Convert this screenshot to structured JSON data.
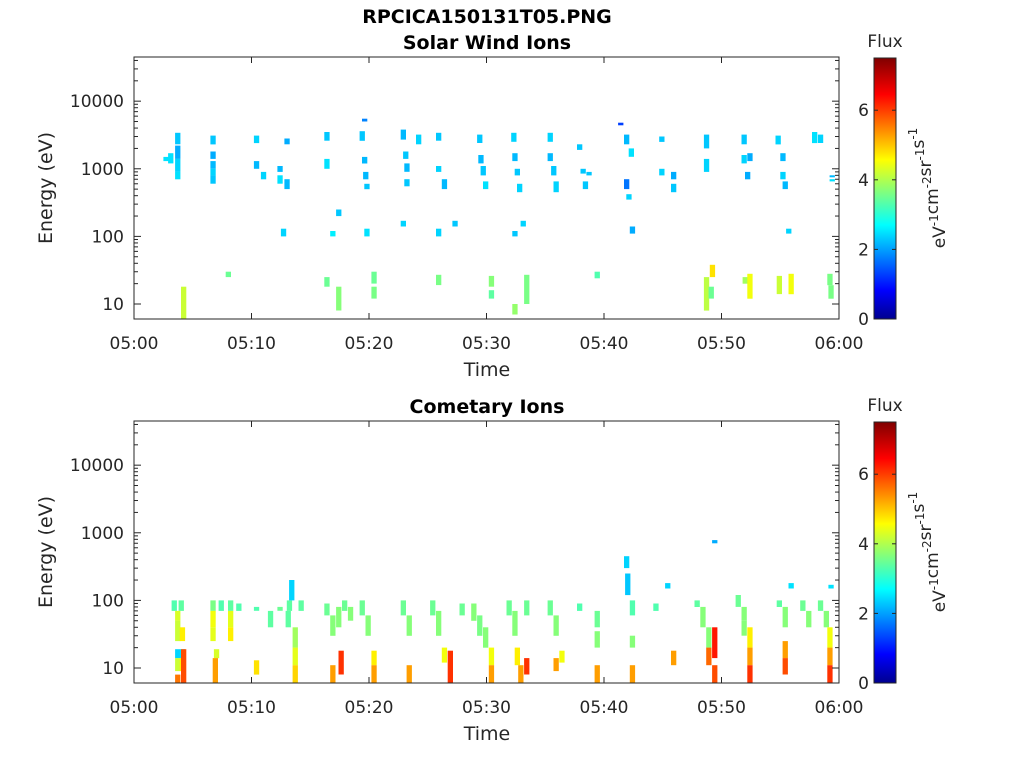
{
  "figure_title": "RPCICA150131T05.PNG",
  "chart_data": [
    {
      "type": "heatmap",
      "title": "Solar Wind Ions",
      "xlabel": "Time",
      "ylabel": "Energy (eV)",
      "x_ticks": [
        "05:00",
        "05:10",
        "05:20",
        "05:30",
        "05:40",
        "05:50",
        "06:00"
      ],
      "xlim": [
        "05:00",
        "06:00"
      ],
      "y_scale": "log",
      "y_ticks": [
        "10",
        "100",
        "1000",
        "10000"
      ],
      "ylim": [
        6,
        45000
      ],
      "colorbar": {
        "title": "Flux",
        "label": "eV^-1 cm^-2 sr^-1 s^-1",
        "ticks": [
          "0",
          "2",
          "4",
          "6"
        ],
        "range": [
          0,
          7.5
        ],
        "colormap": "jet"
      },
      "cells": [
        [
          2.7,
          1300,
          1500,
          2.6
        ],
        [
          3.1,
          1200,
          1700,
          2.6
        ],
        [
          3.7,
          2300,
          3400,
          2.4
        ],
        [
          3.7,
          1400,
          2200,
          2.2
        ],
        [
          3.7,
          900,
          1400,
          2.5
        ],
        [
          3.7,
          700,
          900,
          2.6
        ],
        [
          4.2,
          6,
          18,
          4.3
        ],
        [
          6.7,
          2300,
          3100,
          2.4
        ],
        [
          6.7,
          1400,
          1800,
          2.2
        ],
        [
          6.7,
          1000,
          1300,
          2.3
        ],
        [
          6.7,
          800,
          1000,
          2.5
        ],
        [
          6.7,
          600,
          800,
          2.4
        ],
        [
          8.0,
          25,
          30,
          3.6
        ],
        [
          10.4,
          2400,
          3100,
          2.5
        ],
        [
          10.4,
          1000,
          1300,
          2.3
        ],
        [
          11.0,
          700,
          900,
          2.5
        ],
        [
          12.4,
          900,
          1100,
          2.3
        ],
        [
          12.4,
          600,
          800,
          2.6
        ],
        [
          13.0,
          2300,
          2800,
          2.2
        ],
        [
          13.0,
          500,
          700,
          2.3
        ],
        [
          12.7,
          100,
          130,
          2.5
        ],
        [
          16.4,
          2600,
          3500,
          2.4
        ],
        [
          16.4,
          1000,
          1400,
          2.6
        ],
        [
          16.4,
          18,
          25,
          3.6
        ],
        [
          17.4,
          8,
          18,
          3.8
        ],
        [
          17.4,
          200,
          250,
          2.4
        ],
        [
          16.9,
          100,
          120,
          2.7
        ],
        [
          19.4,
          2600,
          3600,
          2.4
        ],
        [
          19.6,
          1200,
          1500,
          2.3
        ],
        [
          19.7,
          700,
          900,
          2.3
        ],
        [
          19.8,
          500,
          600,
          2.4
        ],
        [
          19.8,
          100,
          130,
          2.6
        ],
        [
          19.6,
          5000,
          5500,
          1.9
        ],
        [
          20.4,
          20,
          30,
          3.6
        ],
        [
          20.4,
          12,
          18,
          3.7
        ],
        [
          22.9,
          2700,
          3800,
          2.3
        ],
        [
          23.1,
          1400,
          1800,
          2.4
        ],
        [
          23.2,
          900,
          1200,
          2.3
        ],
        [
          23.2,
          550,
          700,
          2.4
        ],
        [
          22.9,
          140,
          170,
          2.5
        ],
        [
          24.2,
          2300,
          3200,
          2.5
        ],
        [
          25.9,
          2600,
          3400,
          2.4
        ],
        [
          25.9,
          900,
          1100,
          2.5
        ],
        [
          25.9,
          19,
          27,
          3.7
        ],
        [
          26.4,
          500,
          700,
          2.3
        ],
        [
          25.9,
          100,
          130,
          2.5
        ],
        [
          27.3,
          140,
          170,
          2.4
        ],
        [
          29.4,
          2400,
          3200,
          2.4
        ],
        [
          29.5,
          1200,
          1600,
          2.3
        ],
        [
          29.7,
          800,
          1100,
          2.4
        ],
        [
          29.9,
          500,
          650,
          2.6
        ],
        [
          30.4,
          18,
          26,
          3.8
        ],
        [
          30.4,
          12,
          16,
          3.5
        ],
        [
          32.3,
          2500,
          3400,
          2.5
        ],
        [
          32.4,
          1300,
          1700,
          2.3
        ],
        [
          32.6,
          800,
          1000,
          2.4
        ],
        [
          32.8,
          450,
          600,
          2.5
        ],
        [
          32.4,
          100,
          120,
          2.4
        ],
        [
          32.4,
          7,
          10,
          3.9
        ],
        [
          33.4,
          10,
          27,
          3.7
        ],
        [
          33.1,
          140,
          170,
          2.5
        ],
        [
          35.4,
          2500,
          3400,
          2.5
        ],
        [
          35.4,
          1300,
          1700,
          2.3
        ],
        [
          35.7,
          800,
          1100,
          2.4
        ],
        [
          35.9,
          450,
          650,
          2.5
        ],
        [
          37.9,
          1900,
          2300,
          2.4
        ],
        [
          38.2,
          850,
          1000,
          2.4
        ],
        [
          38.4,
          500,
          650,
          2.4
        ],
        [
          38.7,
          800,
          900,
          2.4
        ],
        [
          39.4,
          24,
          30,
          3.4
        ],
        [
          41.4,
          4400,
          4800,
          1.4
        ],
        [
          41.9,
          2300,
          3200,
          2.3
        ],
        [
          41.9,
          500,
          700,
          1.8
        ],
        [
          42.3,
          1500,
          2000,
          2.6
        ],
        [
          42.1,
          350,
          420,
          2.5
        ],
        [
          42.4,
          110,
          140,
          2.2
        ],
        [
          44.9,
          2500,
          3000,
          2.4
        ],
        [
          44.9,
          800,
          1000,
          2.5
        ],
        [
          45.9,
          700,
          900,
          2.2
        ],
        [
          45.9,
          450,
          600,
          2.4
        ],
        [
          48.7,
          2000,
          3200,
          2.4
        ],
        [
          48.7,
          900,
          1400,
          2.5
        ],
        [
          48.7,
          8,
          25,
          4.2
        ],
        [
          49.2,
          25,
          38,
          4.9
        ],
        [
          49.1,
          12,
          18,
          3.6
        ],
        [
          51.9,
          2300,
          3200,
          2.4
        ],
        [
          51.9,
          1200,
          1600,
          2.5
        ],
        [
          52.2,
          700,
          900,
          2.2
        ],
        [
          52.4,
          1300,
          1700,
          2.2
        ],
        [
          52.0,
          20,
          25,
          4.0
        ],
        [
          52.4,
          12,
          28,
          4.6
        ],
        [
          54.8,
          2300,
          3100,
          2.5
        ],
        [
          55.2,
          1300,
          1700,
          2.3
        ],
        [
          55.2,
          700,
          900,
          2.5
        ],
        [
          55.4,
          500,
          650,
          2.3
        ],
        [
          55.7,
          110,
          130,
          2.5
        ],
        [
          54.9,
          14,
          26,
          4.3
        ],
        [
          55.9,
          14,
          28,
          4.6
        ],
        [
          57.9,
          2400,
          3500,
          2.6
        ],
        [
          58.4,
          2400,
          3200,
          2.5
        ],
        [
          59.4,
          750,
          800,
          2.3
        ],
        [
          59.4,
          650,
          700,
          2.6
        ],
        [
          59.2,
          19,
          28,
          3.7
        ],
        [
          59.3,
          12,
          19,
          3.7
        ]
      ]
    },
    {
      "type": "heatmap",
      "title": "Cometary Ions",
      "xlabel": "Time",
      "ylabel": "Energy (eV)",
      "x_ticks": [
        "05:00",
        "05:10",
        "05:20",
        "05:30",
        "05:40",
        "05:50",
        "06:00"
      ],
      "xlim": [
        "05:00",
        "06:00"
      ],
      "y_scale": "log",
      "y_ticks": [
        "10",
        "100",
        "1000",
        "10000"
      ],
      "ylim": [
        6,
        45000
      ],
      "colorbar": {
        "title": "Flux",
        "label": "eV^-1 cm^-2 sr^-1 s^-1",
        "ticks": [
          "0",
          "2",
          "4",
          "6"
        ],
        "range": [
          0,
          7.5
        ],
        "colormap": "jet"
      },
      "cells": [
        [
          3.4,
          70,
          100,
          3.4
        ],
        [
          4.0,
          70,
          100,
          3.5
        ],
        [
          3.7,
          50,
          70,
          4.4
        ],
        [
          3.7,
          25,
          50,
          4.3
        ],
        [
          4.1,
          25,
          40,
          4.8
        ],
        [
          3.7,
          14,
          19,
          2.5
        ],
        [
          4.1,
          14,
          19,
          2.6
        ],
        [
          3.7,
          9,
          14,
          4.3
        ],
        [
          4.1,
          9,
          14,
          4.8
        ],
        [
          3.7,
          6,
          8,
          5.7
        ],
        [
          4.2,
          6,
          19,
          6.0
        ],
        [
          6.7,
          70,
          100,
          3.7
        ],
        [
          6.7,
          40,
          70,
          4.6
        ],
        [
          6.7,
          25,
          40,
          4.5
        ],
        [
          7.0,
          14,
          19,
          4.4
        ],
        [
          6.9,
          6,
          14,
          5.4
        ],
        [
          7.4,
          70,
          100,
          3.4
        ],
        [
          8.2,
          70,
          100,
          3.5
        ],
        [
          8.2,
          40,
          70,
          4.5
        ],
        [
          8.2,
          25,
          40,
          4.8
        ],
        [
          8.9,
          70,
          90,
          3.4
        ],
        [
          10.4,
          8,
          13,
          4.9
        ],
        [
          10.4,
          70,
          80,
          3.4
        ],
        [
          11.6,
          40,
          70,
          3.5
        ],
        [
          12.4,
          70,
          80,
          3.6
        ],
        [
          13.2,
          70,
          100,
          3.5
        ],
        [
          13.4,
          100,
          200,
          2.5
        ],
        [
          13.1,
          40,
          70,
          3.5
        ],
        [
          13.7,
          20,
          40,
          4.0
        ],
        [
          13.7,
          11,
          20,
          4.5
        ],
        [
          13.7,
          6,
          11,
          5.0
        ],
        [
          14.2,
          70,
          100,
          3.5
        ],
        [
          16.4,
          60,
          90,
          3.6
        ],
        [
          16.9,
          30,
          60,
          3.8
        ],
        [
          16.9,
          6,
          11,
          5.4
        ],
        [
          17.4,
          40,
          80,
          3.8
        ],
        [
          17.6,
          8,
          18,
          6.2
        ],
        [
          17.9,
          70,
          100,
          3.6
        ],
        [
          18.4,
          50,
          80,
          3.8
        ],
        [
          19.4,
          60,
          100,
          3.6
        ],
        [
          19.9,
          30,
          60,
          3.8
        ],
        [
          20.4,
          11,
          18,
          4.8
        ],
        [
          20.4,
          6,
          11,
          5.4
        ],
        [
          22.9,
          60,
          100,
          3.6
        ],
        [
          23.4,
          30,
          60,
          3.8
        ],
        [
          23.4,
          6,
          11,
          5.4
        ],
        [
          25.4,
          60,
          100,
          3.6
        ],
        [
          25.9,
          30,
          70,
          3.8
        ],
        [
          26.4,
          12,
          20,
          4.6
        ],
        [
          26.9,
          6,
          18,
          6.2
        ],
        [
          27.9,
          60,
          90,
          3.6
        ],
        [
          28.9,
          50,
          90,
          3.8
        ],
        [
          29.4,
          30,
          60,
          3.7
        ],
        [
          29.9,
          20,
          40,
          3.8
        ],
        [
          30.4,
          11,
          20,
          4.6
        ],
        [
          30.4,
          6,
          11,
          5.4
        ],
        [
          31.9,
          60,
          100,
          3.6
        ],
        [
          32.4,
          30,
          70,
          3.8
        ],
        [
          32.6,
          11,
          20,
          4.8
        ],
        [
          32.9,
          6,
          11,
          5.4
        ],
        [
          33.4,
          8,
          14,
          6.2
        ],
        [
          33.4,
          60,
          100,
          3.6
        ],
        [
          35.4,
          60,
          100,
          3.6
        ],
        [
          35.9,
          30,
          60,
          3.8
        ],
        [
          36.4,
          12,
          18,
          4.6
        ],
        [
          35.9,
          9,
          14,
          5.4
        ],
        [
          37.9,
          70,
          90,
          3.4
        ],
        [
          39.4,
          40,
          70,
          3.6
        ],
        [
          39.4,
          20,
          35,
          3.8
        ],
        [
          39.4,
          6,
          11,
          5.4
        ],
        [
          41.9,
          300,
          450,
          2.5
        ],
        [
          42.0,
          120,
          250,
          2.4
        ],
        [
          42.4,
          60,
          100,
          3.4
        ],
        [
          42.4,
          20,
          30,
          3.8
        ],
        [
          42.4,
          6,
          11,
          5.4
        ],
        [
          45.4,
          150,
          180,
          2.5
        ],
        [
          44.4,
          70,
          90,
          3.4
        ],
        [
          45.9,
          11,
          18,
          5.4
        ],
        [
          47.9,
          80,
          100,
          3.5
        ],
        [
          48.4,
          40,
          80,
          3.8
        ],
        [
          48.9,
          20,
          40,
          3.8
        ],
        [
          48.9,
          11,
          20,
          5.8
        ],
        [
          49.4,
          14,
          40,
          6.4
        ],
        [
          49.4,
          6,
          11,
          6.0
        ],
        [
          49.4,
          700,
          780,
          2.2
        ],
        [
          51.4,
          80,
          120,
          3.6
        ],
        [
          51.9,
          50,
          80,
          3.8
        ],
        [
          51.9,
          30,
          50,
          3.8
        ],
        [
          52.4,
          20,
          40,
          4.8
        ],
        [
          52.4,
          11,
          20,
          5.4
        ],
        [
          52.4,
          6,
          11,
          6.2
        ],
        [
          54.9,
          80,
          100,
          3.5
        ],
        [
          55.4,
          40,
          80,
          3.8
        ],
        [
          55.4,
          14,
          25,
          5.4
        ],
        [
          55.4,
          8,
          14,
          6.0
        ],
        [
          55.9,
          150,
          180,
          2.6
        ],
        [
          56.9,
          70,
          100,
          3.6
        ],
        [
          57.4,
          40,
          70,
          3.8
        ],
        [
          58.4,
          70,
          100,
          3.6
        ],
        [
          58.9,
          40,
          70,
          3.8
        ],
        [
          59.2,
          20,
          40,
          4.6
        ],
        [
          59.2,
          11,
          20,
          5.4
        ],
        [
          59.2,
          6,
          11,
          6.2
        ],
        [
          59.3,
          150,
          170,
          2.6
        ]
      ]
    }
  ]
}
